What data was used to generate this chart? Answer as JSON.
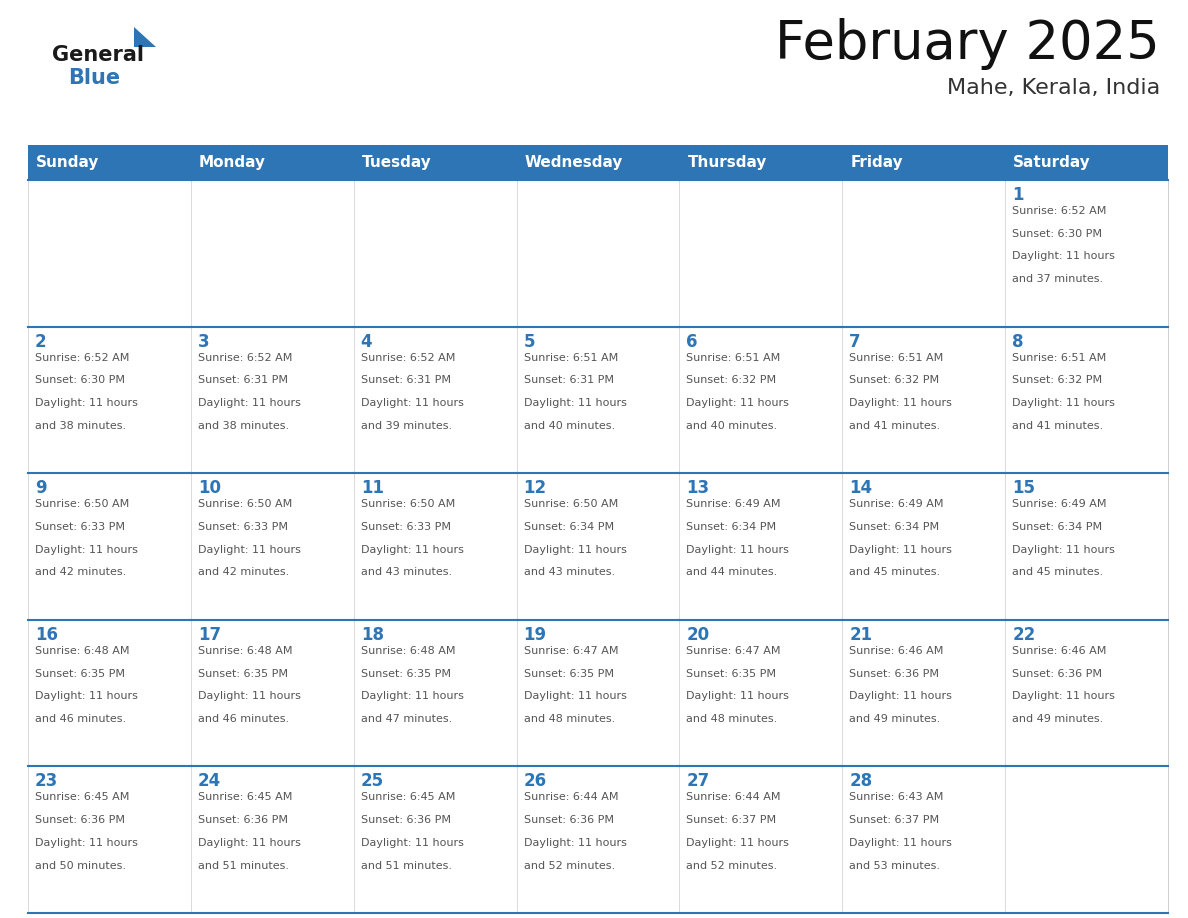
{
  "title": "February 2025",
  "subtitle": "Mahe, Kerala, India",
  "header_color": "#2E75B6",
  "header_text_color": "#FFFFFF",
  "day_headers": [
    "Sunday",
    "Monday",
    "Tuesday",
    "Wednesday",
    "Thursday",
    "Friday",
    "Saturday"
  ],
  "cell_border_color": "#2E75B6",
  "cell_bg_color": "#FFFFFF",
  "day_number_color": "#2E75B6",
  "info_text_color": "#555555",
  "logo_general_color": "#1a1a1a",
  "logo_blue_color": "#2E75B6",
  "title_fontsize": 38,
  "subtitle_fontsize": 16,
  "header_fontsize": 11,
  "day_num_fontsize": 12,
  "info_fontsize": 8,
  "calendar_data": [
    [
      null,
      null,
      null,
      null,
      null,
      null,
      {
        "day": 1,
        "sunrise": "6:52 AM",
        "sunset": "6:30 PM",
        "daylight": "11 hours and 37 minutes."
      }
    ],
    [
      {
        "day": 2,
        "sunrise": "6:52 AM",
        "sunset": "6:30 PM",
        "daylight": "11 hours and 38 minutes."
      },
      {
        "day": 3,
        "sunrise": "6:52 AM",
        "sunset": "6:31 PM",
        "daylight": "11 hours and 38 minutes."
      },
      {
        "day": 4,
        "sunrise": "6:52 AM",
        "sunset": "6:31 PM",
        "daylight": "11 hours and 39 minutes."
      },
      {
        "day": 5,
        "sunrise": "6:51 AM",
        "sunset": "6:31 PM",
        "daylight": "11 hours and 40 minutes."
      },
      {
        "day": 6,
        "sunrise": "6:51 AM",
        "sunset": "6:32 PM",
        "daylight": "11 hours and 40 minutes."
      },
      {
        "day": 7,
        "sunrise": "6:51 AM",
        "sunset": "6:32 PM",
        "daylight": "11 hours and 41 minutes."
      },
      {
        "day": 8,
        "sunrise": "6:51 AM",
        "sunset": "6:32 PM",
        "daylight": "11 hours and 41 minutes."
      }
    ],
    [
      {
        "day": 9,
        "sunrise": "6:50 AM",
        "sunset": "6:33 PM",
        "daylight": "11 hours and 42 minutes."
      },
      {
        "day": 10,
        "sunrise": "6:50 AM",
        "sunset": "6:33 PM",
        "daylight": "11 hours and 42 minutes."
      },
      {
        "day": 11,
        "sunrise": "6:50 AM",
        "sunset": "6:33 PM",
        "daylight": "11 hours and 43 minutes."
      },
      {
        "day": 12,
        "sunrise": "6:50 AM",
        "sunset": "6:34 PM",
        "daylight": "11 hours and 43 minutes."
      },
      {
        "day": 13,
        "sunrise": "6:49 AM",
        "sunset": "6:34 PM",
        "daylight": "11 hours and 44 minutes."
      },
      {
        "day": 14,
        "sunrise": "6:49 AM",
        "sunset": "6:34 PM",
        "daylight": "11 hours and 45 minutes."
      },
      {
        "day": 15,
        "sunrise": "6:49 AM",
        "sunset": "6:34 PM",
        "daylight": "11 hours and 45 minutes."
      }
    ],
    [
      {
        "day": 16,
        "sunrise": "6:48 AM",
        "sunset": "6:35 PM",
        "daylight": "11 hours and 46 minutes."
      },
      {
        "day": 17,
        "sunrise": "6:48 AM",
        "sunset": "6:35 PM",
        "daylight": "11 hours and 46 minutes."
      },
      {
        "day": 18,
        "sunrise": "6:48 AM",
        "sunset": "6:35 PM",
        "daylight": "11 hours and 47 minutes."
      },
      {
        "day": 19,
        "sunrise": "6:47 AM",
        "sunset": "6:35 PM",
        "daylight": "11 hours and 48 minutes."
      },
      {
        "day": 20,
        "sunrise": "6:47 AM",
        "sunset": "6:35 PM",
        "daylight": "11 hours and 48 minutes."
      },
      {
        "day": 21,
        "sunrise": "6:46 AM",
        "sunset": "6:36 PM",
        "daylight": "11 hours and 49 minutes."
      },
      {
        "day": 22,
        "sunrise": "6:46 AM",
        "sunset": "6:36 PM",
        "daylight": "11 hours and 49 minutes."
      }
    ],
    [
      {
        "day": 23,
        "sunrise": "6:45 AM",
        "sunset": "6:36 PM",
        "daylight": "11 hours and 50 minutes."
      },
      {
        "day": 24,
        "sunrise": "6:45 AM",
        "sunset": "6:36 PM",
        "daylight": "11 hours and 51 minutes."
      },
      {
        "day": 25,
        "sunrise": "6:45 AM",
        "sunset": "6:36 PM",
        "daylight": "11 hours and 51 minutes."
      },
      {
        "day": 26,
        "sunrise": "6:44 AM",
        "sunset": "6:36 PM",
        "daylight": "11 hours and 52 minutes."
      },
      {
        "day": 27,
        "sunrise": "6:44 AM",
        "sunset": "6:37 PM",
        "daylight": "11 hours and 52 minutes."
      },
      {
        "day": 28,
        "sunrise": "6:43 AM",
        "sunset": "6:37 PM",
        "daylight": "11 hours and 53 minutes."
      },
      null
    ]
  ]
}
